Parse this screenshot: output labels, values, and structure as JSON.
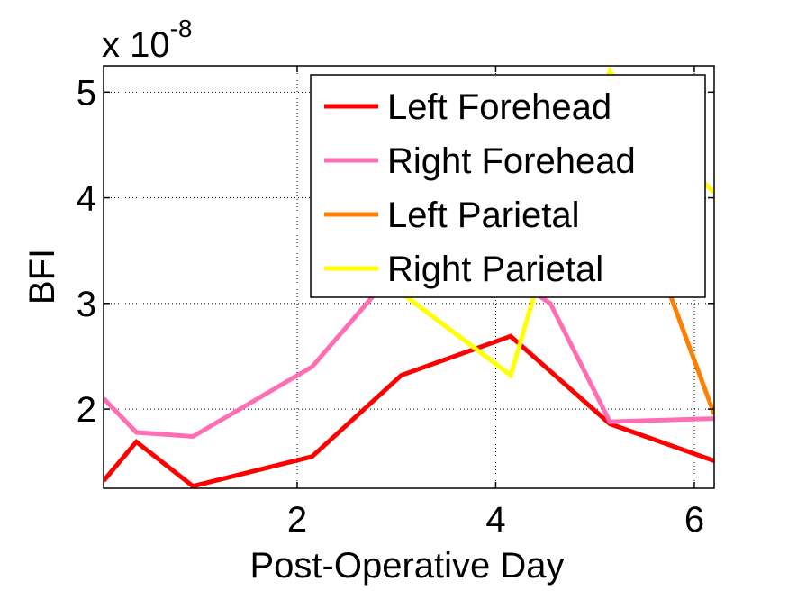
{
  "chart_data": {
    "type": "line",
    "title": "",
    "xlabel": "Post-Operative Day",
    "ylabel": "BFI",
    "y_exponent_label": "x 10",
    "y_exponent_power": "-8",
    "xlim": [
      0.05,
      6.2
    ],
    "ylim": [
      1.25,
      5.25
    ],
    "xticks": [
      2,
      4,
      6
    ],
    "yticks": [
      2,
      3,
      4,
      5
    ],
    "grid": true,
    "legend_position": "top-right",
    "series": [
      {
        "name": "Left Forehead",
        "color": "#ff0000",
        "x": [
          0.05,
          0.38,
          0.95,
          2.15,
          3.05,
          4.15,
          5.15,
          6.2
        ],
        "y": [
          1.32,
          1.69,
          1.27,
          1.55,
          2.32,
          2.69,
          1.86,
          1.51
        ]
      },
      {
        "name": "Right Forehead",
        "color": "#ff6eb4",
        "x": [
          0.05,
          0.38,
          0.95,
          2.15,
          3.05,
          4.15,
          4.55,
          5.15,
          6.2
        ],
        "y": [
          2.1,
          1.78,
          1.74,
          2.4,
          3.38,
          3.25,
          3.0,
          1.88,
          1.91
        ]
      },
      {
        "name": "Left Parietal",
        "color": "#ff8000",
        "x": [
          5.15,
          5.75,
          6.2
        ],
        "y": [
          4.0,
          3.1,
          1.95
        ]
      },
      {
        "name": "Right Parietal",
        "color": "#ffff00",
        "x": [
          3.05,
          4.15,
          4.55,
          5.15,
          5.6,
          6.2
        ],
        "y": [
          3.1,
          2.32,
          3.6,
          5.2,
          4.6,
          4.05
        ]
      }
    ]
  }
}
